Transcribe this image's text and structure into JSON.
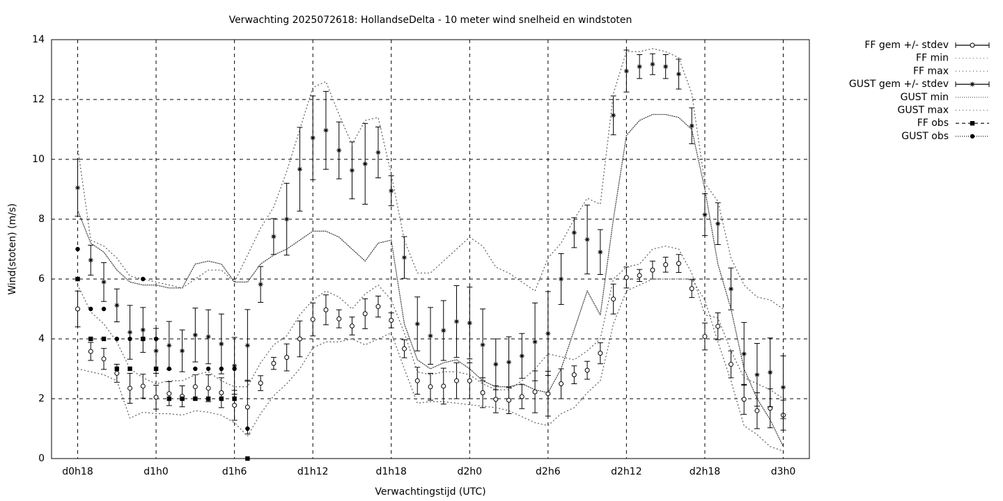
{
  "chart_data": {
    "type": "errorbar",
    "title": "Verwachting 2025072618: HollandseDelta - 10 meter wind snelheid en windstoten",
    "xlabel": "Verwachtingstijd (UTC)",
    "ylabel": "Wind(stoten) (m/s)",
    "x": [
      18,
      19,
      20,
      21,
      22,
      23,
      24,
      25,
      26,
      27,
      28,
      29,
      30,
      31,
      32,
      33,
      34,
      35,
      36,
      37,
      38,
      39,
      40,
      41,
      42,
      43,
      44,
      45,
      46,
      47,
      48,
      49,
      50,
      51,
      52,
      53,
      54,
      55,
      56,
      57,
      58,
      59,
      60,
      61,
      62,
      63,
      64,
      65,
      66,
      67,
      68,
      69,
      70,
      71,
      72
    ],
    "xlim": [
      16,
      74
    ],
    "xticks": [
      {
        "value": 18,
        "label": "d0h18"
      },
      {
        "value": 24,
        "label": "d1h0"
      },
      {
        "value": 30,
        "label": "d1h6"
      },
      {
        "value": 36,
        "label": "d1h12"
      },
      {
        "value": 42,
        "label": "d1h18"
      },
      {
        "value": 48,
        "label": "d2h0"
      },
      {
        "value": 54,
        "label": "d2h6"
      },
      {
        "value": 60,
        "label": "d2h12"
      },
      {
        "value": 66,
        "label": "d2h18"
      },
      {
        "value": 72,
        "label": "d3h0"
      }
    ],
    "ylim": [
      0,
      14
    ],
    "yticks": [
      0,
      2,
      4,
      6,
      8,
      10,
      12,
      14
    ],
    "grid": true,
    "legend": "outside-right",
    "series": [
      {
        "name": "FF gem +/- stdev",
        "color": "#000000",
        "marker": "open-circle",
        "line": "none",
        "values": [
          5.0,
          3.58,
          3.33,
          2.85,
          2.35,
          2.42,
          2.05,
          2.17,
          2.08,
          2.4,
          2.35,
          2.2,
          1.78,
          1.72,
          2.52,
          3.18,
          3.38,
          4.0,
          4.65,
          4.97,
          4.67,
          4.43,
          4.84,
          5.08,
          4.62,
          3.67,
          2.6,
          2.4,
          2.42,
          2.6,
          2.6,
          2.2,
          1.98,
          1.95,
          2.07,
          2.23,
          2.17,
          2.5,
          2.8,
          2.95,
          3.52,
          5.33,
          6.05,
          6.12,
          6.3,
          6.48,
          6.52,
          5.68,
          4.08,
          4.42,
          3.15,
          1.98,
          1.6,
          1.68,
          1.45
        ],
        "errors": [
          0.6,
          0.3,
          0.35,
          0.3,
          0.5,
          0.4,
          0.4,
          0.4,
          0.35,
          0.4,
          0.45,
          0.5,
          0.5,
          0.9,
          0.25,
          0.2,
          0.45,
          0.6,
          0.55,
          0.5,
          0.3,
          0.3,
          0.5,
          0.35,
          0.25,
          0.3,
          0.45,
          0.45,
          0.6,
          0.6,
          0.6,
          0.5,
          0.45,
          0.45,
          0.4,
          0.7,
          0.75,
          0.5,
          0.3,
          0.3,
          0.35,
          0.5,
          0.35,
          0.2,
          0.3,
          0.25,
          0.3,
          0.3,
          0.45,
          0.45,
          0.45,
          0.5,
          0.6,
          0.65,
          0.5
        ]
      },
      {
        "name": "FF min",
        "color": "#666666",
        "marker": "none",
        "line": "sparse-dot",
        "values": [
          3.0,
          2.9,
          2.8,
          2.6,
          1.35,
          1.55,
          1.5,
          1.5,
          1.45,
          1.6,
          1.55,
          1.45,
          1.2,
          0.75,
          1.5,
          2.1,
          2.5,
          3.0,
          3.7,
          3.9,
          3.9,
          4.0,
          3.8,
          4.0,
          4.2,
          3.0,
          1.85,
          1.9,
          1.9,
          1.85,
          1.8,
          1.75,
          1.7,
          1.6,
          1.4,
          1.2,
          1.1,
          1.5,
          1.7,
          2.2,
          2.6,
          4.5,
          5.6,
          5.8,
          6.0,
          6.0,
          6.0,
          6.0,
          5.3,
          3.9,
          2.6,
          1.1,
          0.8,
          0.4,
          0.25
        ]
      },
      {
        "name": "FF max",
        "color": "#666666",
        "marker": "none",
        "line": "sparse-dot",
        "values": [
          5.8,
          4.9,
          4.5,
          3.9,
          3.0,
          2.7,
          2.5,
          2.6,
          2.6,
          2.8,
          2.9,
          2.6,
          2.4,
          2.4,
          3.2,
          3.8,
          4.1,
          4.8,
          5.3,
          5.6,
          5.4,
          5.0,
          5.5,
          5.8,
          5.3,
          4.2,
          2.9,
          2.8,
          2.9,
          2.9,
          2.8,
          2.5,
          2.3,
          2.3,
          2.6,
          3.0,
          3.5,
          3.4,
          3.3,
          3.6,
          4.0,
          6.0,
          6.4,
          6.5,
          7.0,
          7.1,
          7.0,
          6.2,
          4.8,
          4.7,
          3.6,
          2.7,
          2.5,
          2.3,
          2.0
        ]
      },
      {
        "name": "GUST gem +/- stdev",
        "color": "#000000",
        "marker": "star",
        "line": "none",
        "values": [
          9.05,
          6.63,
          5.9,
          5.12,
          4.22,
          4.3,
          3.6,
          3.78,
          3.6,
          4.13,
          4.07,
          3.83,
          3.1,
          3.78,
          5.82,
          7.42,
          8.0,
          9.67,
          10.72,
          10.97,
          10.3,
          9.63,
          9.85,
          10.23,
          8.95,
          6.72,
          4.5,
          4.1,
          4.28,
          4.58,
          4.53,
          3.8,
          3.15,
          3.22,
          3.43,
          3.9,
          4.18,
          6.0,
          7.55,
          7.32,
          6.9,
          11.47,
          12.95,
          13.1,
          13.18,
          13.1,
          12.85,
          11.12,
          8.15,
          7.85,
          5.67,
          3.5,
          2.8,
          2.88,
          2.38
        ],
        "errors": [
          0.95,
          0.5,
          0.65,
          0.55,
          0.9,
          0.75,
          0.75,
          0.8,
          0.7,
          0.9,
          0.9,
          1.0,
          0.95,
          1.2,
          0.6,
          0.6,
          1.2,
          1.4,
          1.4,
          1.3,
          0.95,
          0.95,
          1.35,
          0.85,
          0.5,
          0.7,
          0.9,
          0.95,
          1.0,
          1.2,
          1.2,
          1.2,
          0.85,
          0.85,
          0.75,
          1.3,
          1.4,
          0.85,
          0.5,
          1.15,
          0.75,
          0.65,
          0.7,
          0.4,
          0.35,
          0.4,
          0.5,
          0.6,
          0.7,
          0.7,
          0.7,
          1.05,
          1.05,
          1.15,
          1.05
        ]
      },
      {
        "name": "GUST min",
        "color": "#444444",
        "marker": "none",
        "line": "dense-dot",
        "values": [
          8.3,
          7.2,
          6.9,
          6.3,
          5.9,
          5.8,
          5.8,
          5.7,
          5.7,
          6.5,
          6.6,
          6.5,
          5.9,
          5.9,
          6.5,
          6.8,
          7.0,
          7.3,
          7.6,
          7.6,
          7.4,
          7.0,
          6.6,
          7.2,
          7.3,
          4.5,
          3.3,
          3.0,
          3.2,
          3.3,
          3.0,
          2.6,
          2.4,
          2.4,
          2.5,
          2.3,
          2.2,
          3.0,
          4.3,
          5.6,
          4.8,
          8.0,
          10.8,
          11.3,
          11.5,
          11.5,
          11.4,
          11.0,
          9.0,
          6.5,
          5.0,
          3.0,
          2.0,
          1.3,
          0.4
        ]
      },
      {
        "name": "GUST max",
        "color": "#666666",
        "marker": "none",
        "line": "sparse-dot",
        "values": [
          10.4,
          7.3,
          7.1,
          6.7,
          6.1,
          6.0,
          5.9,
          5.8,
          5.7,
          6.0,
          6.3,
          6.3,
          5.9,
          6.8,
          7.7,
          8.4,
          9.6,
          11.0,
          12.4,
          12.6,
          11.5,
          10.5,
          11.3,
          11.4,
          9.5,
          7.3,
          6.2,
          6.2,
          6.6,
          7.0,
          7.4,
          7.1,
          6.4,
          6.2,
          5.9,
          5.6,
          6.7,
          7.2,
          8.0,
          8.7,
          8.5,
          12.2,
          13.6,
          13.6,
          13.7,
          13.6,
          13.4,
          12.2,
          9.2,
          8.6,
          6.7,
          5.8,
          5.4,
          5.3,
          5.0
        ]
      },
      {
        "name": "FF obs",
        "color": "#000000",
        "marker": "square",
        "line": "dash",
        "x": [
          18,
          19,
          20,
          21,
          22,
          23,
          24,
          25,
          26,
          27,
          28,
          29,
          30,
          31
        ],
        "values": [
          6,
          4,
          4,
          3,
          3,
          4,
          3,
          2,
          2,
          2,
          2,
          2,
          2,
          0
        ]
      },
      {
        "name": "GUST obs",
        "color": "#000000",
        "marker": "dot",
        "line": "dense-dot",
        "x": [
          18,
          19,
          20,
          21,
          22,
          23,
          24,
          25,
          26,
          27,
          28,
          29,
          30,
          31
        ],
        "values": [
          7,
          5,
          5,
          4,
          4,
          6,
          4,
          3,
          null,
          3,
          3,
          3,
          3,
          1
        ]
      }
    ]
  }
}
